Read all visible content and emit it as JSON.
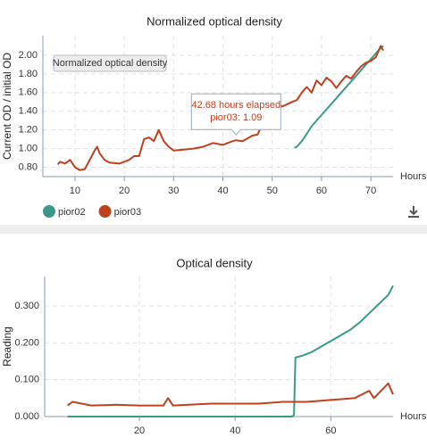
{
  "chart_data": [
    {
      "type": "line",
      "title": "Normalized optical density",
      "ylabel": "Current OD / initial OD",
      "xlabel": "Hours",
      "button_label": "Normalized optical density",
      "legend": true,
      "xlim": [
        3.5,
        74.5
      ],
      "xticks": [
        10,
        20,
        30,
        40,
        50,
        60,
        70
      ],
      "ylim": [
        0.7,
        2.21
      ],
      "yticks": [
        {
          "value": 0.8,
          "label": "0.80"
        },
        {
          "value": 1,
          "label": "1.00"
        },
        {
          "value": 1.2,
          "label": "1.20"
        },
        {
          "value": 1.4,
          "label": "1.40"
        },
        {
          "value": 1.6,
          "label": "1.60"
        },
        {
          "value": 1.8,
          "label": "1.80"
        },
        {
          "value": 2,
          "label": "2.00"
        }
      ],
      "grid": true,
      "tooltip": {
        "x": 42.68,
        "y": 1.09,
        "title": "42.68 hours elapsed",
        "text": "pior03: 1.09"
      },
      "series": [
        {
          "name": "pior02",
          "color": "#3a9a8a",
          "x": [
            54.5,
            55,
            56,
            57,
            58,
            60,
            62,
            64,
            66,
            68,
            70,
            71,
            72,
            72.5
          ],
          "values": [
            1.01,
            1.02,
            1.08,
            1.16,
            1.24,
            1.36,
            1.48,
            1.6,
            1.72,
            1.84,
            1.96,
            2.02,
            2.08,
            2.1
          ]
        },
        {
          "name": "pior03",
          "color": "#c0401e",
          "x": [
            6.5,
            7,
            8,
            9,
            10,
            11,
            12,
            13,
            14,
            14.5,
            15,
            16,
            17,
            19,
            21,
            22,
            23,
            24,
            25,
            26,
            27,
            28,
            29,
            30,
            32,
            34,
            36,
            38,
            40,
            42,
            42.68,
            44,
            46,
            47,
            48,
            49,
            50,
            51,
            52,
            54,
            55,
            56,
            57,
            58,
            59,
            60,
            61,
            62,
            63,
            64,
            65,
            66,
            67,
            68,
            69,
            70,
            71,
            72,
            72.5
          ],
          "values": [
            0.83,
            0.86,
            0.84,
            0.88,
            0.8,
            0.77,
            0.78,
            0.88,
            0.98,
            1.02,
            0.95,
            0.88,
            0.85,
            0.84,
            0.88,
            0.92,
            0.92,
            1.1,
            1.12,
            1.08,
            1.2,
            1.08,
            1.02,
            0.98,
            0.99,
            1.0,
            1.02,
            1.06,
            1.04,
            1.08,
            1.09,
            1.08,
            1.14,
            1.15,
            1.26,
            1.35,
            1.47,
            1.5,
            1.45,
            1.5,
            1.52,
            1.6,
            1.66,
            1.6,
            1.73,
            1.68,
            1.76,
            1.72,
            1.65,
            1.72,
            1.78,
            1.75,
            1.82,
            1.88,
            1.92,
            1.94,
            1.98,
            2.1,
            2.05
          ]
        }
      ]
    },
    {
      "type": "line",
      "title": "Optical density",
      "ylabel": "Reading",
      "xlabel": "Hours",
      "legend": false,
      "xlim": [
        0.2,
        73
      ],
      "xticks": [
        20,
        40,
        60
      ],
      "ylim": [
        0,
        0.38
      ],
      "yticks": [
        {
          "value": 0,
          "label": "0.000"
        },
        {
          "value": 0.1,
          "label": "0.100"
        },
        {
          "value": 0.2,
          "label": "0.200"
        },
        {
          "value": 0.3,
          "label": "0.300"
        }
      ],
      "grid": true,
      "series": [
        {
          "color": "#3a9a8a",
          "x": [
            5,
            52,
            52.3,
            52.6,
            54,
            56,
            58,
            60,
            62,
            64,
            66,
            68,
            70,
            72,
            73
          ],
          "values": [
            0,
            0,
            0.005,
            0.16,
            0.165,
            0.175,
            0.19,
            0.205,
            0.22,
            0.235,
            0.255,
            0.28,
            0.305,
            0.33,
            0.355
          ]
        },
        {
          "color": "#c0401e",
          "x": [
            5,
            6,
            10,
            15,
            20,
            25,
            26,
            27,
            35,
            45,
            50,
            55,
            60,
            65,
            68,
            69,
            72,
            73
          ],
          "values": [
            0.03,
            0.04,
            0.03,
            0.032,
            0.03,
            0.03,
            0.05,
            0.03,
            0.035,
            0.035,
            0.04,
            0.04,
            0.045,
            0.05,
            0.07,
            0.05,
            0.09,
            0.06
          ]
        }
      ]
    }
  ]
}
